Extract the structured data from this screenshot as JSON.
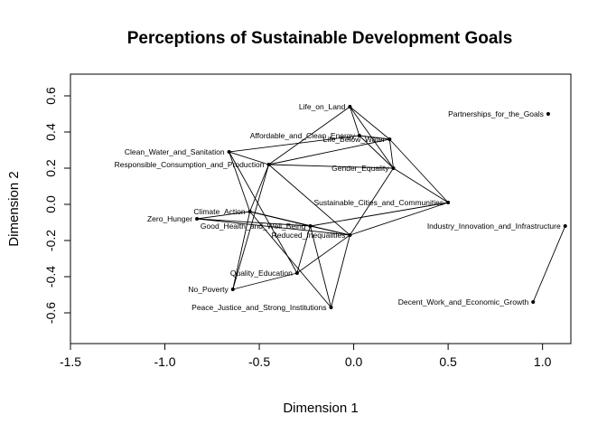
{
  "chart_data": {
    "type": "scatter",
    "title": "Perceptions of Sustainable Development Goals",
    "xlabel": "Dimension 1",
    "ylabel": "Dimension 2",
    "xlim": [
      -1.5,
      1.15
    ],
    "ylim": [
      -0.77,
      0.72
    ],
    "xticks": [
      "-1.5",
      "-1.0",
      "-0.5",
      "0.0",
      "0.5",
      "1.0"
    ],
    "yticks": [
      "-0.6",
      "-0.4",
      "-0.2",
      "0.0",
      "0.2",
      "0.4",
      "0.6"
    ],
    "grid": false,
    "legend": "none",
    "points": [
      {
        "label": "Life_on_Land",
        "x": -0.02,
        "y": 0.54
      },
      {
        "label": "Partnerships_for_the_Goals",
        "x": 1.03,
        "y": 0.5
      },
      {
        "label": "Affordable_and_Clean_Energy",
        "x": 0.03,
        "y": 0.38
      },
      {
        "label": "Life_Below_Water",
        "x": 0.19,
        "y": 0.36
      },
      {
        "label": "Clean_Water_and_Sanitation",
        "x": -0.66,
        "y": 0.29
      },
      {
        "label": "Responsible_Consumption_and_Production",
        "x": -0.45,
        "y": 0.22
      },
      {
        "label": "Gender_Equality",
        "x": 0.21,
        "y": 0.2
      },
      {
        "label": "Sustainable_Cities_and_Communities",
        "x": 0.5,
        "y": 0.01
      },
      {
        "label": "Climate_Action",
        "x": -0.55,
        "y": -0.04
      },
      {
        "label": "Zero_Hunger",
        "x": -0.83,
        "y": -0.08
      },
      {
        "label": "Good_Health_and_Well_Being",
        "x": -0.23,
        "y": -0.12
      },
      {
        "label": "Reduced_Inequalities",
        "x": -0.02,
        "y": -0.17
      },
      {
        "label": "Industry_Innovation_and_Infrastructure",
        "x": 1.12,
        "y": -0.12
      },
      {
        "label": "Quality_Education",
        "x": -0.3,
        "y": -0.38
      },
      {
        "label": "No_Poverty",
        "x": -0.64,
        "y": -0.47
      },
      {
        "label": "Peace_Justice_and_Strong_Institutions",
        "x": -0.12,
        "y": -0.57
      },
      {
        "label": "Decent_Work_and_Economic_Growth",
        "x": 0.95,
        "y": -0.54
      }
    ],
    "edges": [
      [
        "Life_on_Land",
        "Affordable_and_Clean_Energy"
      ],
      [
        "Life_on_Land",
        "Life_Below_Water"
      ],
      [
        "Life_on_Land",
        "Gender_Equality"
      ],
      [
        "Life_on_Land",
        "Responsible_Consumption_and_Production"
      ],
      [
        "Affordable_and_Clean_Energy",
        "Life_Below_Water"
      ],
      [
        "Affordable_and_Clean_Energy",
        "Clean_Water_and_Sanitation"
      ],
      [
        "Affordable_and_Clean_Energy",
        "Gender_Equality"
      ],
      [
        "Life_Below_Water",
        "Responsible_Consumption_and_Production"
      ],
      [
        "Life_Below_Water",
        "Gender_Equality"
      ],
      [
        "Life_Below_Water",
        "Sustainable_Cities_and_Communities"
      ],
      [
        "Clean_Water_and_Sanitation",
        "Responsible_Consumption_and_Production"
      ],
      [
        "Clean_Water_and_Sanitation",
        "Climate_Action"
      ],
      [
        "Clean_Water_and_Sanitation",
        "Quality_Education"
      ],
      [
        "Responsible_Consumption_and_Production",
        "Gender_Equality"
      ],
      [
        "Responsible_Consumption_and_Production",
        "Climate_Action"
      ],
      [
        "Responsible_Consumption_and_Production",
        "No_Poverty"
      ],
      [
        "Responsible_Consumption_and_Production",
        "Reduced_Inequalities"
      ],
      [
        "Gender_Equality",
        "Sustainable_Cities_and_Communities"
      ],
      [
        "Gender_Equality",
        "Reduced_Inequalities"
      ],
      [
        "Sustainable_Cities_and_Communities",
        "Reduced_Inequalities"
      ],
      [
        "Sustainable_Cities_and_Communities",
        "Good_Health_and_Well_Being"
      ],
      [
        "Climate_Action",
        "Zero_Hunger"
      ],
      [
        "Climate_Action",
        "Good_Health_and_Well_Being"
      ],
      [
        "Climate_Action",
        "Reduced_Inequalities"
      ],
      [
        "Climate_Action",
        "Peace_Justice_and_Strong_Institutions"
      ],
      [
        "Climate_Action",
        "No_Poverty"
      ],
      [
        "Zero_Hunger",
        "Good_Health_and_Well_Being"
      ],
      [
        "Zero_Hunger",
        "Reduced_Inequalities"
      ],
      [
        "Good_Health_and_Well_Being",
        "Quality_Education"
      ],
      [
        "Good_Health_and_Well_Being",
        "Reduced_Inequalities"
      ],
      [
        "Good_Health_and_Well_Being",
        "Peace_Justice_and_Strong_Institutions"
      ],
      [
        "Reduced_Inequalities",
        "Quality_Education"
      ],
      [
        "Reduced_Inequalities",
        "Peace_Justice_and_Strong_Institutions"
      ],
      [
        "Quality_Education",
        "No_Poverty"
      ],
      [
        "Industry_Innovation_and_Infrastructure",
        "Decent_Work_and_Economic_Growth"
      ]
    ]
  }
}
